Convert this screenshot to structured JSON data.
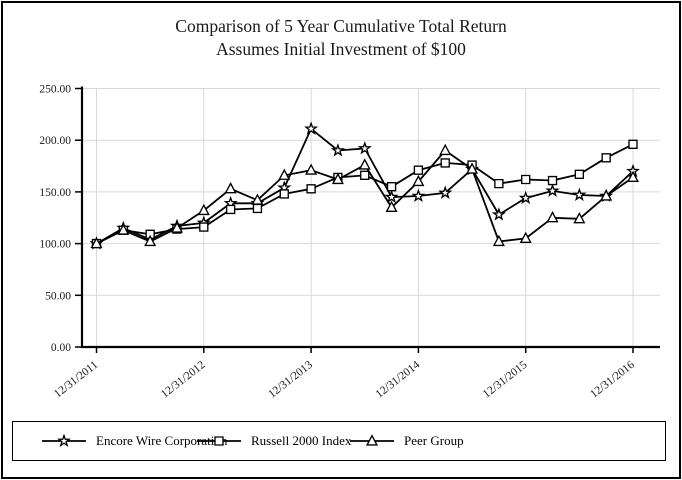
{
  "title": {
    "line1": "Comparison of 5 Year Cumulative Total Return",
    "line2": "Assumes Initial Investment of $100"
  },
  "legend": {
    "position": "bottom",
    "items": [
      {
        "label": "Encore Wire Corporation",
        "marker": "star"
      },
      {
        "label": "Russell 2000 Index",
        "marker": "square"
      },
      {
        "label": "Peer Group",
        "marker": "triangle"
      }
    ]
  },
  "colors": {
    "series_line": "#000000",
    "marker_fill": "#ffffff",
    "grid": "#d9d9d9",
    "axis": "#000000",
    "background": "#ffffff"
  },
  "chart_data": {
    "type": "line",
    "title": "Comparison of 5 Year Cumulative Total Return",
    "subtitle": "Assumes Initial Investment of $100",
    "xlabel": "",
    "ylabel": "",
    "ylim": [
      0,
      250
    ],
    "grid": true,
    "legend_position": "bottom",
    "y_ticks": [
      0,
      50,
      100,
      150,
      200,
      250
    ],
    "y_tick_labels": [
      "0.00",
      "50.00",
      "100.00",
      "150.00",
      "200.00",
      "250.00"
    ],
    "x_tick_labels": [
      "12/31/2011",
      "12/31/2012",
      "12/31/2013",
      "12/31/2014",
      "12/31/2015",
      "12/31/2016"
    ],
    "points_per_year": 4,
    "year_tick_every": 4,
    "x_frequency": "quarterly",
    "series": [
      {
        "name": "Encore Wire Corporation",
        "marker": "star",
        "values": [
          100,
          115,
          104,
          117,
          120,
          139,
          139,
          154,
          211,
          190,
          192,
          145,
          146,
          149,
          172,
          128,
          144,
          151,
          147,
          146,
          170
        ]
      },
      {
        "name": "Russell 2000 Index",
        "marker": "square",
        "values": [
          100,
          113,
          109,
          114,
          116,
          133,
          134,
          148,
          153,
          164,
          166,
          155,
          171,
          178,
          176,
          158,
          162,
          161,
          167,
          183,
          196
        ]
      },
      {
        "name": "Peer Group",
        "marker": "triangle",
        "values": [
          100,
          113,
          102,
          115,
          132,
          153,
          142,
          166,
          171,
          162,
          176,
          135,
          160,
          190,
          172,
          102,
          105,
          125,
          124,
          146,
          164
        ]
      }
    ]
  }
}
